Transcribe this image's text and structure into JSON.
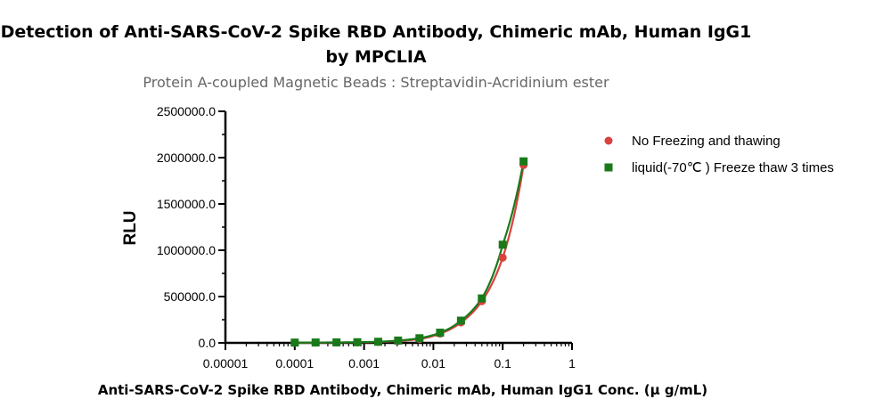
{
  "chart_data": {
    "type": "scatter",
    "title_line1": "Detection of Anti-SARS-CoV-2 Spike RBD Antibody, Chimeric mAb, Human IgG1",
    "title_line2": "by MPCLIA",
    "subtitle": "Protein A-coupled Magnetic Beads : Streptavidin-Acridinium ester",
    "xlabel": "Anti-SARS-CoV-2 Spike RBD Antibody, Chimeric mAb, Human IgG1 Conc. (μ g/mL)",
    "ylabel": "RLU",
    "x_scale": "log",
    "xlim": [
      1e-05,
      1
    ],
    "ylim": [
      0,
      2500000
    ],
    "x_ticks": [
      1e-05,
      0.0001,
      0.001,
      0.01,
      0.1,
      1
    ],
    "x_tick_labels": [
      "0.00001",
      "0.0001",
      "0.001",
      "0.01",
      "0.1",
      "1"
    ],
    "y_ticks": [
      0,
      500000,
      1000000,
      1500000,
      2000000,
      2500000
    ],
    "y_tick_labels": [
      "0.0",
      "500000.0",
      "1000000.0",
      "1500000.0",
      "2000000.0",
      "2500000.0"
    ],
    "grid": false,
    "legend_position": "right",
    "series": [
      {
        "name": "No Freezing and thawing",
        "marker": "circle",
        "color": "#d9423f",
        "x": [
          0.0001,
          0.0002,
          0.0004,
          0.0008,
          0.0016,
          0.0031,
          0.0063,
          0.0125,
          0.025,
          0.05,
          0.1,
          0.2
        ],
        "y": [
          2000,
          3000,
          4000,
          6000,
          10000,
          20000,
          40000,
          100000,
          220000,
          450000,
          920000,
          1920000
        ]
      },
      {
        "name": "liquid(-70℃ ) Freeze thaw 3 times",
        "marker": "square",
        "color": "#1a7a1a",
        "x": [
          0.0001,
          0.0002,
          0.0004,
          0.0008,
          0.0016,
          0.0031,
          0.0063,
          0.0125,
          0.025,
          0.05,
          0.1,
          0.2
        ],
        "y": [
          3000,
          4000,
          5000,
          7000,
          12000,
          25000,
          50000,
          110000,
          240000,
          480000,
          1060000,
          1960000
        ]
      }
    ]
  }
}
